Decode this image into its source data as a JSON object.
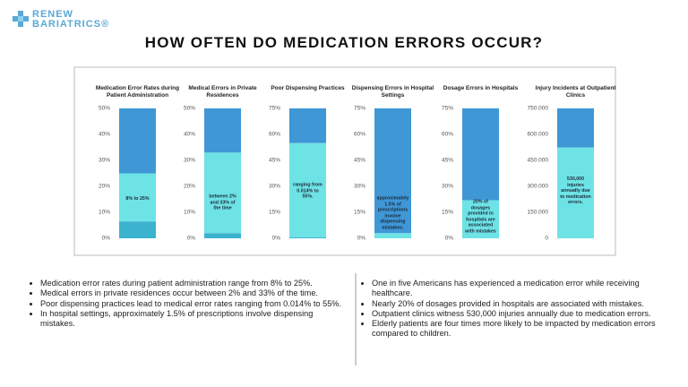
{
  "logo": {
    "line1": "RENEW",
    "line2": "BARIATRICS®"
  },
  "title": "HOW OFTEN DO MEDICATION ERRORS OCCUR?",
  "chart_data": [
    {
      "type": "bar",
      "title": "Medication Error Rates during Patient Administration",
      "annotation": "8% to 25%",
      "series": [
        {
          "color": "#3bb3cf",
          "values": [
            6.5
          ]
        },
        {
          "color": "#6ee3e6",
          "values": [
            18.5
          ]
        },
        {
          "color": "#3f97d6",
          "values": [
            25
          ]
        }
      ],
      "ylim": [
        0,
        50
      ],
      "yticks": [
        {
          "value": 0,
          "label": "0%"
        },
        {
          "value": 10,
          "label": "10%"
        },
        {
          "value": 20,
          "label": "20%"
        },
        {
          "value": 30,
          "label": "30%"
        },
        {
          "value": 40,
          "label": "40%"
        },
        {
          "value": 50,
          "label": "50%"
        }
      ]
    },
    {
      "type": "bar",
      "title": "Medical Errors in Private Residences",
      "annotation": "between 2% and 33% of the time",
      "series": [
        {
          "color": "#3bb3cf",
          "values": [
            2
          ]
        },
        {
          "color": "#6ee3e6",
          "values": [
            31
          ]
        },
        {
          "color": "#3f97d6",
          "values": [
            17
          ]
        }
      ],
      "ylim": [
        0,
        50
      ],
      "yticks": [
        {
          "value": 0,
          "label": "0%"
        },
        {
          "value": 10,
          "label": "10%"
        },
        {
          "value": 20,
          "label": "20%"
        },
        {
          "value": 30,
          "label": "30%"
        },
        {
          "value": 40,
          "label": "40%"
        },
        {
          "value": 50,
          "label": "50%"
        }
      ]
    },
    {
      "type": "bar",
      "title": "Poor Dispensing Practices",
      "annotation": "ranging from 0.014% to 55%.",
      "series": [
        {
          "color": "#3bb3cf",
          "values": [
            0.5
          ]
        },
        {
          "color": "#6ee3e6",
          "values": [
            54.5
          ]
        },
        {
          "color": "#3f97d6",
          "values": [
            20
          ]
        }
      ],
      "ylim": [
        0,
        75
      ],
      "yticks": [
        {
          "value": 0,
          "label": "0%"
        },
        {
          "value": 15,
          "label": "15%"
        },
        {
          "value": 30,
          "label": "30%"
        },
        {
          "value": 45,
          "label": "45%"
        },
        {
          "value": 60,
          "label": "60%"
        },
        {
          "value": 75,
          "label": "75%"
        }
      ]
    },
    {
      "type": "bar",
      "title": "Dispensing Errors in Hospital Settings",
      "annotation": "approximately 1.5% of prescriptions involve dispensing mistakes.",
      "series": [
        {
          "color": "#6ee3e6",
          "values": [
            3
          ]
        },
        {
          "color": "#3f97d6",
          "values": [
            72
          ]
        }
      ],
      "ylim": [
        0,
        75
      ],
      "yticks": [
        {
          "value": 0,
          "label": "0%"
        },
        {
          "value": 15,
          "label": "15%"
        },
        {
          "value": 30,
          "label": "30%"
        },
        {
          "value": 45,
          "label": "45%"
        },
        {
          "value": 60,
          "label": "60%"
        },
        {
          "value": 75,
          "label": "75%"
        }
      ]
    },
    {
      "type": "bar",
      "title": "Dosage Errors in Hospitals",
      "annotation": "20% of dosages provided in hospitals are associated with mistakes",
      "series": [
        {
          "color": "#6ee3e6",
          "values": [
            22
          ]
        },
        {
          "color": "#3f97d6",
          "values": [
            53
          ]
        }
      ],
      "ylim": [
        0,
        75
      ],
      "yticks": [
        {
          "value": 0,
          "label": "0%"
        },
        {
          "value": 15,
          "label": "15%"
        },
        {
          "value": 30,
          "label": "30%"
        },
        {
          "value": 45,
          "label": "45%"
        },
        {
          "value": 60,
          "label": "60%"
        },
        {
          "value": 75,
          "label": "75%"
        }
      ]
    },
    {
      "type": "bar",
      "title": "Injury Incidents at Outpatient Clinics",
      "annotation": "530,000 injuries annually due to medication errors.",
      "series": [
        {
          "color": "#6ee3e6",
          "values": [
            525000
          ]
        },
        {
          "color": "#3f97d6",
          "values": [
            225000
          ]
        }
      ],
      "ylim": [
        0,
        750000
      ],
      "yticks": [
        0,
        {
          "value": 150000,
          "label": "150.000"
        },
        {
          "value": 300000,
          "label": "300.000"
        },
        {
          "value": 450000,
          "label": "450.000"
        },
        {
          "value": 600000,
          "label": "600.000"
        },
        {
          "value": 750000,
          "label": "750.000"
        }
      ]
    }
  ],
  "bullets_left": [
    "Medication error rates during patient administration range from 8% to 25%.",
    "Medical errors in private residences occur between 2% and 33% of the time.",
    "Poor dispensing practices lead to medical error rates ranging from 0.014% to 55%.",
    "In hospital settings, approximately 1.5% of prescriptions involve dispensing mistakes."
  ],
  "bullets_right": [
    "One in five Americans has experienced a medication error while receiving healthcare.",
    "Nearly 20% of dosages provided in hospitals are associated with mistakes.",
    "Outpatient clinics witness 530,000 injuries annually due to medication errors.",
    "Elderly patients are four times more likely to be impacted by medication errors compared to children."
  ]
}
